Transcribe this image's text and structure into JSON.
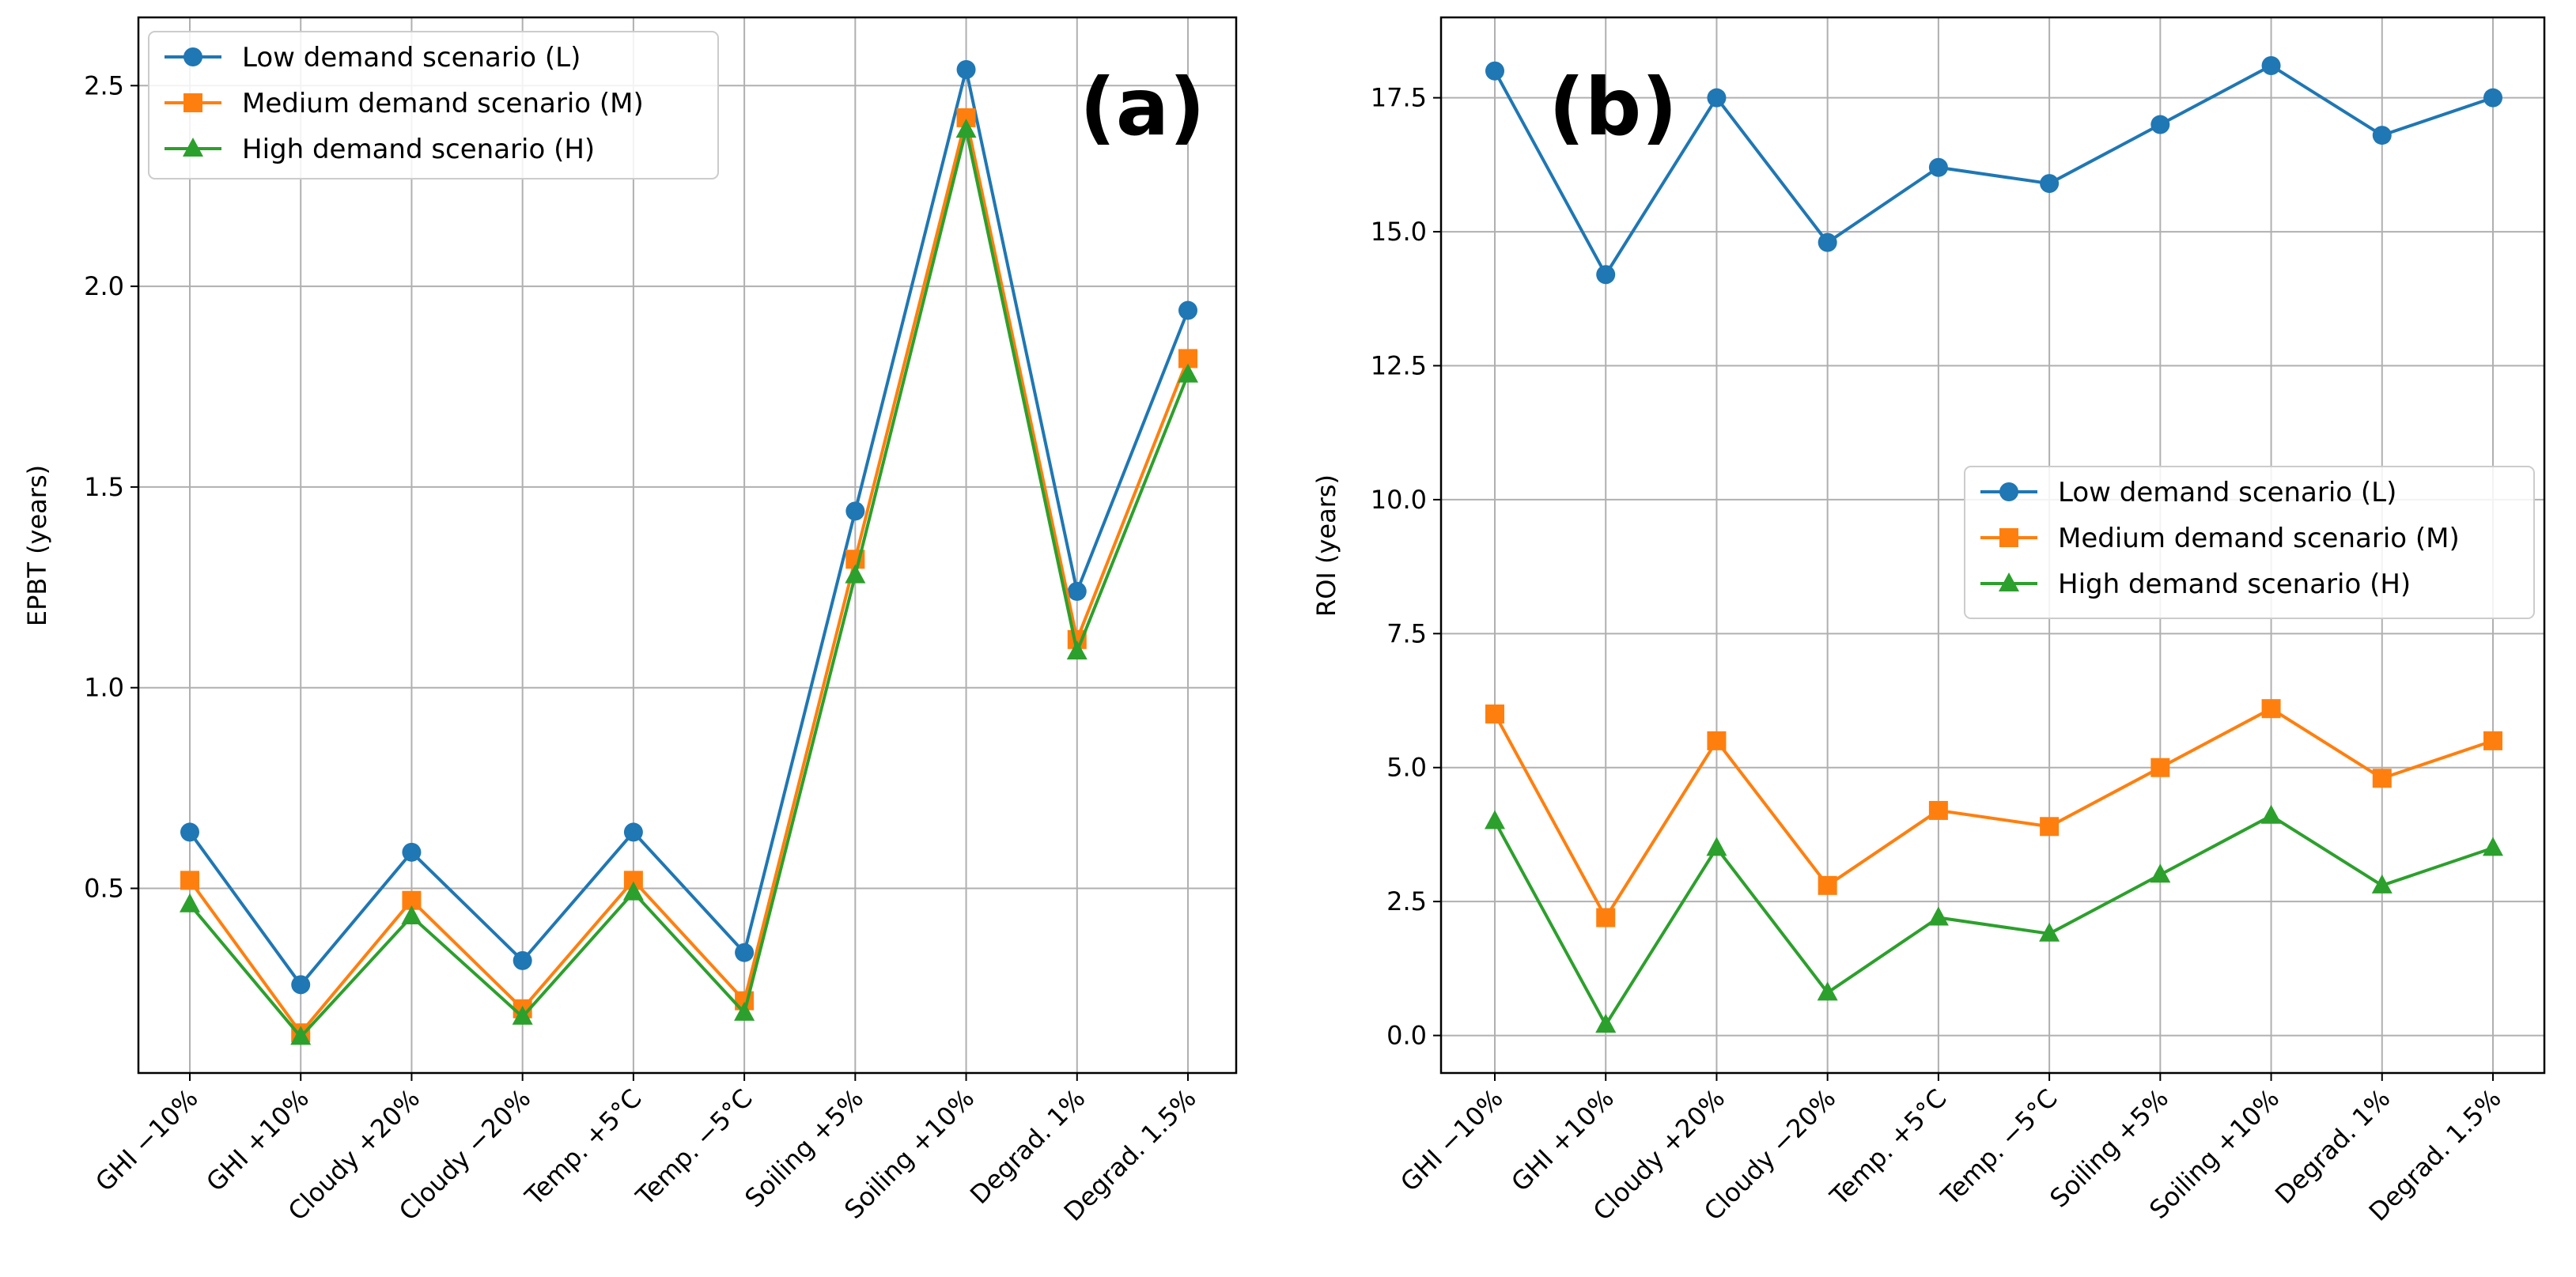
{
  "chart_data": [
    {
      "type": "line",
      "panel_label": "(a)",
      "title": "",
      "xlabel": "",
      "ylabel": "EPBT (years)",
      "categories": [
        "GHI −10%",
        "GHI +10%",
        "Cloudy +20%",
        "Cloudy −20%",
        "Temp. +5°C",
        "Temp. −5°C",
        "Soiling +5%",
        "Soiling +10%",
        "Degrad. 1%",
        "Degrad. 1.5%"
      ],
      "ylim": [
        0.04,
        2.67
      ],
      "yticks": [
        0.5,
        1.0,
        1.5,
        2.0,
        2.5
      ],
      "ytick_labels": [
        "0.5",
        "1.0",
        "1.5",
        "2.0",
        "2.5"
      ],
      "grid": true,
      "legend_position": "top-left",
      "series": [
        {
          "name": "Low demand scenario (L)",
          "color": "#1f77b4",
          "marker": "circle",
          "values": [
            0.64,
            0.26,
            0.59,
            0.32,
            0.64,
            0.34,
            1.44,
            2.54,
            1.24,
            1.94
          ]
        },
        {
          "name": "Medium demand scenario (M)",
          "color": "#ff7f0e",
          "marker": "square",
          "values": [
            0.52,
            0.14,
            0.47,
            0.2,
            0.52,
            0.22,
            1.32,
            2.42,
            1.12,
            1.82
          ]
        },
        {
          "name": "High demand scenario (H)",
          "color": "#2ca02c",
          "marker": "triangle",
          "values": [
            0.46,
            0.13,
            0.43,
            0.18,
            0.49,
            0.19,
            1.28,
            2.39,
            1.09,
            1.78
          ]
        }
      ]
    },
    {
      "type": "line",
      "panel_label": "(b)",
      "title": "",
      "xlabel": "",
      "ylabel": "ROI (years)",
      "categories": [
        "GHI −10%",
        "GHI +10%",
        "Cloudy +20%",
        "Cloudy −20%",
        "Temp. +5°C",
        "Temp. −5°C",
        "Soiling +5%",
        "Soiling +10%",
        "Degrad. 1%",
        "Degrad. 1.5%"
      ],
      "ylim": [
        -0.7,
        19.0
      ],
      "yticks": [
        0.0,
        2.5,
        5.0,
        7.5,
        10.0,
        12.5,
        15.0,
        17.5
      ],
      "ytick_labels": [
        "0.0",
        "2.5",
        "5.0",
        "7.5",
        "10.0",
        "12.5",
        "15.0",
        "17.5"
      ],
      "grid": true,
      "legend_position": "center-right",
      "series": [
        {
          "name": "Low demand scenario (L)",
          "color": "#1f77b4",
          "marker": "circle",
          "values": [
            18.0,
            14.2,
            17.5,
            14.8,
            16.2,
            15.9,
            17.0,
            18.1,
            16.8,
            17.5
          ]
        },
        {
          "name": "Medium demand scenario (M)",
          "color": "#ff7f0e",
          "marker": "square",
          "values": [
            6.0,
            2.2,
            5.5,
            2.8,
            4.2,
            3.9,
            5.0,
            6.1,
            4.8,
            5.5
          ]
        },
        {
          "name": "High demand scenario (H)",
          "color": "#2ca02c",
          "marker": "triangle",
          "values": [
            4.0,
            0.2,
            3.5,
            0.8,
            2.2,
            1.9,
            3.0,
            4.1,
            2.8,
            3.5
          ]
        }
      ]
    }
  ]
}
